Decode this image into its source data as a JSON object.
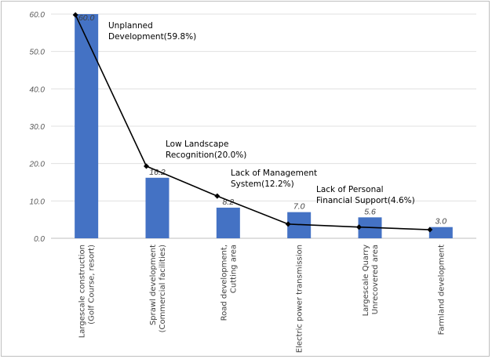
{
  "chart_data": {
    "type": "bar",
    "categories": [
      [
        "Largescale construction",
        "(Golf Course, resort)"
      ],
      [
        "Sprawl development",
        "(Commercial facilities)"
      ],
      [
        "Road development,",
        "Cutting area"
      ],
      [
        "Electric power transmission"
      ],
      [
        "Largescale Quarry",
        "Unrecovered area"
      ],
      [
        "Farmland development"
      ]
    ],
    "values": [
      60.0,
      16.2,
      8.2,
      7.0,
      5.6,
      3.0
    ],
    "value_labels": [
      "60.0",
      "16.2",
      "8.2",
      "7.0",
      "5.6",
      "3.0"
    ],
    "cumulative_line": [
      59.8,
      19.3,
      11.3,
      3.8,
      3.0,
      2.3
    ],
    "ylim": [
      0,
      60
    ],
    "yticks": [
      "0.0",
      "10.0",
      "20.0",
      "30.0",
      "40.0",
      "50.0",
      "60.0"
    ],
    "grid": true,
    "bar_color": "#4472c4",
    "line_color": "#000000",
    "annotations": [
      {
        "lines": [
          "Unplanned",
          "Development(59.8%)"
        ]
      },
      {
        "lines": [
          "Low Landscape",
          "Recognition(20.0%)"
        ]
      },
      {
        "lines": [
          "Lack of Management",
          "System(12.2%)"
        ]
      },
      {
        "lines": [
          "Lack of Personal",
          "Financial Support(4.6%)"
        ]
      }
    ]
  }
}
